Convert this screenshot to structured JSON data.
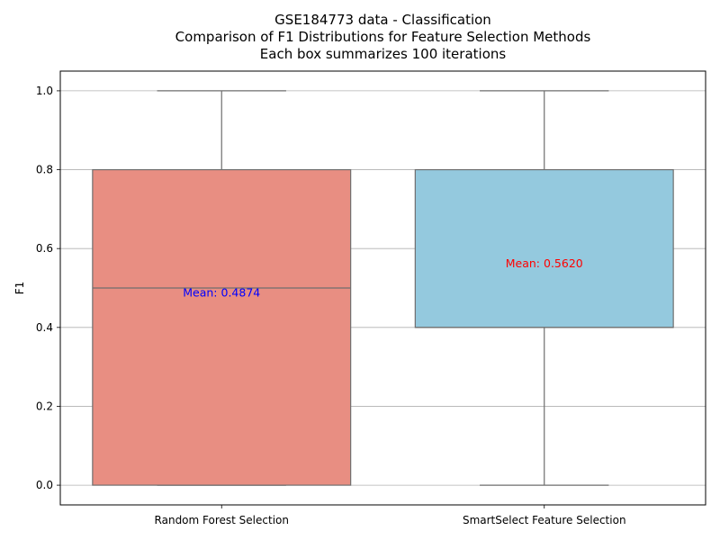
{
  "chart_data": {
    "type": "box",
    "title_lines": [
      "GSE184773 data - Classification",
      "Comparison of F1 Distributions for Feature Selection Methods",
      "Each box summarizes 100 iterations"
    ],
    "xlabel": "",
    "ylabel": "F1",
    "ylim": [
      -0.05,
      1.05
    ],
    "yticks": [
      0.0,
      0.2,
      0.4,
      0.6,
      0.8,
      1.0
    ],
    "ytick_labels": [
      "0.0",
      "0.2",
      "0.4",
      "0.6",
      "0.8",
      "1.0"
    ],
    "grid": "y",
    "categories": [
      "Random Forest Selection",
      "SmartSelect Feature Selection"
    ],
    "boxes": [
      {
        "category": "Random Forest Selection",
        "min": 0.0,
        "q1": 0.0,
        "median": 0.5,
        "q3": 0.8,
        "max": 1.0,
        "mean": 0.4874,
        "mean_label": "Mean: 0.4874",
        "fill_color": "#e88e82",
        "mean_label_color": "#0000ff"
      },
      {
        "category": "SmartSelect Feature Selection",
        "min": 0.0,
        "q1": 0.4,
        "median": 0.4,
        "q3": 0.8,
        "max": 1.0,
        "mean": 0.562,
        "mean_label": "Mean: 0.5620",
        "fill_color": "#94c9de",
        "mean_label_color": "#ff0000"
      }
    ],
    "line_color": "#6e6e6e",
    "grid_color": "#b0b0b0"
  }
}
